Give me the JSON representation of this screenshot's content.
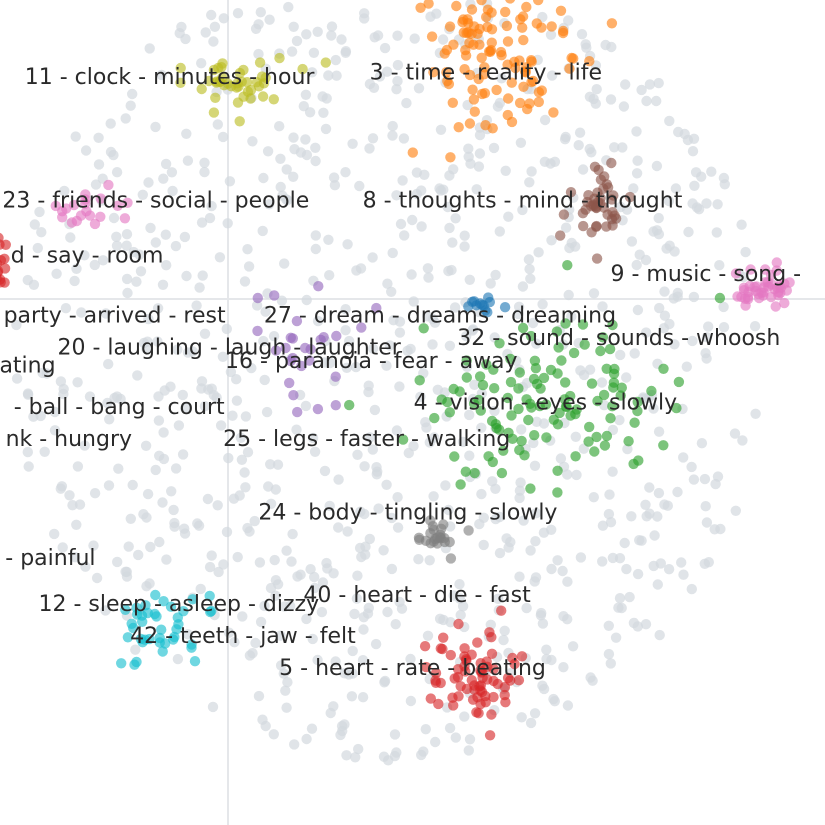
{
  "chart_data": {
    "type": "scatter",
    "xlim": [
      -60,
      120
    ],
    "ylim": [
      -120,
      60
    ],
    "axes": {
      "zero_lines": true,
      "grid": false
    },
    "background_color": "#d3d9de",
    "labels": [
      {
        "text": "11 - clock - minutes - hour",
        "x": -23,
        "y": 43
      },
      {
        "text": "3 - time - reality - life",
        "x": 46,
        "y": 44
      },
      {
        "text": "23 - friends - social - people",
        "x": -26,
        "y": 16
      },
      {
        "text": "8 - thoughts - mind - thought",
        "x": 54,
        "y": 16
      },
      {
        "text": "d - say - room",
        "x": -41,
        "y": 4
      },
      {
        "text": "9 - music - song -",
        "x": 94,
        "y": 0
      },
      {
        "text": "party - arrived - rest",
        "x": -35,
        "y": -9
      },
      {
        "text": "27 - dream - dreams - dreaming",
        "x": 36,
        "y": -9
      },
      {
        "text": "20 - laughing - laugh - laughter",
        "x": -10,
        "y": -16
      },
      {
        "text": "32 - sound - sounds - whoosh",
        "x": 75,
        "y": -14
      },
      {
        "text": "ating",
        "x": -54,
        "y": -20
      },
      {
        "text": "16 - paranoia - fear - away",
        "x": 21,
        "y": -19
      },
      {
        "text": "- ball - bang - court",
        "x": -34,
        "y": -29
      },
      {
        "text": "4 - vision - eyes - slowly",
        "x": 59,
        "y": -28
      },
      {
        "text": "nk - hungry",
        "x": -45,
        "y": -36
      },
      {
        "text": "25 - legs - faster - walking",
        "x": 20,
        "y": -36
      },
      {
        "text": "24 - body - tingling - slowly",
        "x": 29,
        "y": -52
      },
      {
        "text": "- painful",
        "x": -49,
        "y": -62
      },
      {
        "text": "40 - heart - die - fast",
        "x": 31,
        "y": -70
      },
      {
        "text": "12 - sleep - asleep - dizzy",
        "x": -21,
        "y": -72
      },
      {
        "text": "42 - teeth - jaw - felt",
        "x": -7,
        "y": -79
      },
      {
        "text": "5 - heart - rate - beating",
        "x": 30,
        "y": -86
      }
    ],
    "clusters": [
      {
        "name": "3",
        "color": "#ff7f0e",
        "cx": 48,
        "cy": 48,
        "sx": 8,
        "sy": 8,
        "n": 110
      },
      {
        "name": "11",
        "color": "#bcbd22",
        "cx": -8,
        "cy": 42,
        "sx": 7,
        "sy": 3,
        "n": 42
      },
      {
        "name": "8",
        "color": "#8c564b",
        "cx": 70,
        "cy": 14,
        "sx": 3,
        "sy": 5,
        "n": 42
      },
      {
        "name": "23",
        "color": "#e377c2",
        "cx": -40,
        "cy": 15,
        "sx": 5,
        "sy": 2,
        "n": 20
      },
      {
        "name": "9",
        "color": "#e377c2",
        "cx": 107,
        "cy": -3,
        "sx": 3,
        "sy": 2,
        "n": 42
      },
      {
        "name": "27",
        "color": "#1f77b4",
        "cx": 45,
        "cy": -7,
        "sx": 2,
        "sy": 1,
        "n": 12
      },
      {
        "name": "4",
        "color": "#2ca02c",
        "cx": 60,
        "cy": -28,
        "sx": 14,
        "sy": 10,
        "n": 120
      },
      {
        "name": "16",
        "color": "#9467bd",
        "cx": 5,
        "cy": -16,
        "sx": 7,
        "sy": 7,
        "n": 26
      },
      {
        "name": "24",
        "color": "#7f7f7f",
        "cx": 37,
        "cy": -57,
        "sx": 3,
        "sy": 2,
        "n": 22
      },
      {
        "name": "12",
        "color": "#17becf",
        "cx": -24,
        "cy": -75,
        "sx": 6,
        "sy": 5,
        "n": 40
      },
      {
        "name": "5",
        "color": "#d62728",
        "cx": 44,
        "cy": -88,
        "sx": 5,
        "sy": 5,
        "n": 70
      },
      {
        "name": "left",
        "color": "#d62728",
        "cx": -60,
        "cy": 1,
        "sx": 1,
        "sy": 4,
        "n": 14
      }
    ],
    "background_cloud": {
      "color": "#d3d9de",
      "n": 900
    }
  }
}
